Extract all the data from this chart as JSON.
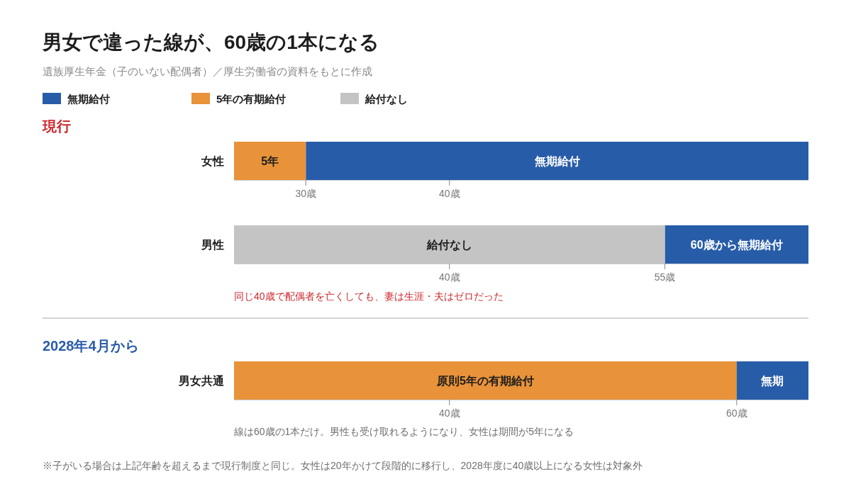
{
  "chart_data": [
    {
      "type": "bar",
      "orientation": "horizontal",
      "title": "男女で違った線が、60歳の1本になる",
      "subtitle": "遺族厚生年金（子のいない配偶者）／厚生労働省の資料をもとに作成",
      "legend": "top left",
      "annotations": [
        "現行",
        "5年",
        "無期給付"
      ],
      "categories": [
        "女性"
      ],
      "series": [
        {
          "name": "無期給付",
          "color": "#275ca8",
          "values": [
            35
          ],
          "base": [
            30
          ]
        },
        {
          "name": "5年の有期給付",
          "color": "#e8923a",
          "values": [
            5
          ],
          "base": [
            25
          ]
        }
      ],
      "xlim": [
        25,
        65
      ],
      "xticks": [
        {
          "value": 30,
          "label": "30歳"
        },
        {
          "value": 40,
          "label": "40歳"
        }
      ]
    },
    {
      "type": "bar",
      "orientation": "horizontal",
      "annotations": [
        "同じ40歳で配偶者を亡くしても、妻は生涯・夫はゼロだった",
        "給付なし",
        "60歳から無期給付"
      ],
      "categories": [
        "男性"
      ],
      "series": [
        {
          "color": "#275ca8",
          "values": [
            10
          ],
          "base": [
            55
          ]
        },
        {
          "name": "給付なし",
          "color": "#c4c4c4",
          "values": [
            30
          ],
          "base": [
            25
          ]
        }
      ],
      "xlim": [
        25,
        65
      ],
      "xticks": [
        {
          "value": 40,
          "label": "40歳"
        },
        {
          "value": 55,
          "label": "55歳"
        }
      ]
    },
    {
      "type": "bar",
      "orientation": "horizontal",
      "annotations": [
        "2028年4月から",
        "原則5年の有期給付",
        "無期",
        "線は60歳の1本だけ。男性も受け取れるようになり、女性は期間が5年になる",
        "※子がいる場合は上記年齢を超えるまで現行制度と同じ。女性は20年かけて段階的に移行し、2028年度に40歳以上になる女性は対象外"
      ],
      "categories": [
        "男女共通"
      ],
      "series": [
        {
          "color": "#e8923a",
          "values": [
            35
          ],
          "base": [
            25
          ]
        },
        {
          "color": "#275ca8",
          "values": [
            5
          ],
          "base": [
            60
          ]
        }
      ],
      "xlim": [
        25,
        65
      ],
      "xticks": [
        {
          "value": 40,
          "label": "40歳"
        },
        {
          "value": 60,
          "label": "60歳"
        }
      ]
    }
  ]
}
